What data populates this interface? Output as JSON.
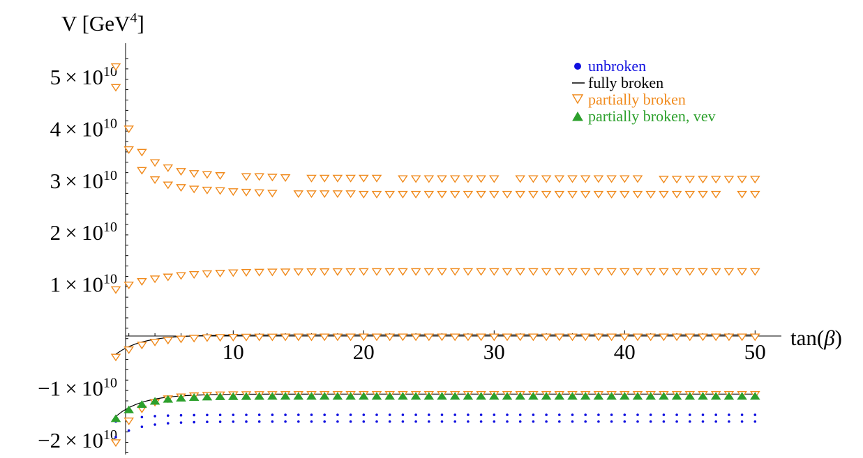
{
  "chart_data": {
    "type": "scatter",
    "title": "",
    "xlabel": "tan(β)",
    "ylabel": "V [GeV⁴]",
    "ylabel_parts": {
      "base": "V [GeV",
      "sup": "4",
      "close": "]"
    },
    "xlim": [
      0.5,
      51
    ],
    "ylim": [
      -22500000000.0,
      55000000000.0
    ],
    "x_ticks": [
      {
        "value": 10,
        "label": "10"
      },
      {
        "value": 20,
        "label": "20"
      },
      {
        "value": 30,
        "label": "30"
      },
      {
        "value": 40,
        "label": "40"
      },
      {
        "value": 50,
        "label": "50"
      }
    ],
    "y_ticks": [
      {
        "value": 50000000000.0,
        "coef": "5",
        "base": "10",
        "exp": "10"
      },
      {
        "value": 40000000000.0,
        "coef": "4",
        "base": "10",
        "exp": "10"
      },
      {
        "value": 30000000000.0,
        "coef": "3",
        "base": "10",
        "exp": "10"
      },
      {
        "value": 20000000000.0,
        "coef": "2",
        "base": "10",
        "exp": "10"
      },
      {
        "value": 10000000000.0,
        "coef": "1",
        "base": "10",
        "exp": "10"
      },
      {
        "value": -10000000000.0,
        "coef": "−1",
        "base": "10",
        "exp": "10"
      },
      {
        "value": -20000000000.0,
        "coef": "−2",
        "base": "10",
        "exp": "10"
      }
    ],
    "y_unit_in_tick_labels": "1e10",
    "y_minor_step": 2000000000.0,
    "grid": false,
    "legend_position": "top-right",
    "legend": [
      {
        "label": "unbroken",
        "marker": "filled-circle",
        "color": "#1010e0"
      },
      {
        "label": "fully broken",
        "marker": "line",
        "color": "#000000"
      },
      {
        "label": "partially broken",
        "marker": "open-triangle-down",
        "color": "#f08a1c"
      },
      {
        "label": "partially broken, vev",
        "marker": "filled-triangle-up",
        "color": "#2ca02c"
      }
    ],
    "series": [
      {
        "name": "unbroken",
        "marker": "filled-circle",
        "color": "#1010e0",
        "x_start": 1,
        "x_step": 1,
        "x_end": 50,
        "levels": [
          {
            "x_from": 1,
            "y_start": -16500000000.0,
            "y_end": -15200000000.0,
            "decay": 0.55
          },
          {
            "x_from": 1,
            "y_start": -19500000000.0,
            "y_end": -16500000000.0,
            "decay": 0.55
          },
          {
            "x_from": 1,
            "y_start": -15600000000.0,
            "y_end": -11600000000.0,
            "decay": 0.45
          }
        ]
      },
      {
        "name": "fully broken",
        "marker": "line",
        "color": "#000000",
        "levels": [
          {
            "x_from": 1,
            "y_start": -3500000000.0,
            "y_end": 200000000.0,
            "decay": 0.5
          },
          {
            "x_from": 1,
            "y_start": -15500000000.0,
            "y_end": -11200000000.0,
            "decay": 0.5
          }
        ]
      },
      {
        "name": "partially broken",
        "marker": "open-triangle-down",
        "color": "#f08a1c",
        "levels": [
          {
            "x_from": 1,
            "y_start": 9000000000.0,
            "y_end": 12500000000.0,
            "decay": 0.3
          },
          {
            "x_from": 1,
            "y_start": -4000000000.0,
            "y_end": -100000000.0,
            "decay": 0.45
          },
          {
            "x_from": 1,
            "y_start": -20500000000.0,
            "y_end": -11200000000.0,
            "decay": 0.6
          }
        ],
        "upper_points": [
          [
            1,
            52000000000.0
          ],
          [
            1,
            48000000000.0
          ],
          [
            2,
            40000000000.0
          ],
          [
            2,
            36000000000.0
          ],
          [
            3,
            35500000000.0
          ],
          [
            3,
            32000000000.0
          ],
          [
            4,
            33500000000.0
          ],
          [
            4,
            30200000000.0
          ],
          [
            5,
            32500000000.0
          ],
          [
            5,
            29200000000.0
          ],
          [
            6,
            31800000000.0
          ],
          [
            6,
            28700000000.0
          ],
          [
            7,
            31400000000.0
          ],
          [
            7,
            28400000000.0
          ],
          [
            8,
            31200000000.0
          ],
          [
            8,
            28200000000.0
          ],
          [
            9,
            31000000000.0
          ],
          [
            9,
            28100000000.0
          ],
          [
            10,
            27900000000.0
          ],
          [
            11,
            30800000000.0
          ],
          [
            11,
            27800000000.0
          ],
          [
            12,
            30800000000.0
          ],
          [
            12,
            27700000000.0
          ],
          [
            13,
            30700000000.0
          ],
          [
            13,
            27600000000.0
          ],
          [
            14,
            30600000000.0
          ],
          [
            15,
            27500000000.0
          ],
          [
            16,
            30500000000.0
          ],
          [
            16,
            27500000000.0
          ],
          [
            17,
            30500000000.0
          ],
          [
            17,
            27500000000.0
          ],
          [
            18,
            30500000000.0
          ],
          [
            18,
            27500000000.0
          ],
          [
            19,
            30500000000.0
          ],
          [
            19,
            27500000000.0
          ],
          [
            20,
            30500000000.0
          ],
          [
            20,
            27400000000.0
          ],
          [
            21,
            30500000000.0
          ],
          [
            21,
            27400000000.0
          ],
          [
            22,
            27400000000.0
          ],
          [
            23,
            30400000000.0
          ],
          [
            23,
            27400000000.0
          ],
          [
            24,
            30400000000.0
          ],
          [
            24,
            27400000000.0
          ],
          [
            25,
            30400000000.0
          ],
          [
            25,
            27400000000.0
          ],
          [
            26,
            30400000000.0
          ],
          [
            26,
            27400000000.0
          ],
          [
            27,
            30400000000.0
          ],
          [
            27,
            27400000000.0
          ],
          [
            28,
            30400000000.0
          ],
          [
            28,
            27400000000.0
          ],
          [
            29,
            30400000000.0
          ],
          [
            29,
            27400000000.0
          ],
          [
            30,
            30400000000.0
          ],
          [
            30,
            27400000000.0
          ],
          [
            31,
            27400000000.0
          ],
          [
            32,
            30400000000.0
          ],
          [
            32,
            27400000000.0
          ],
          [
            33,
            30400000000.0
          ],
          [
            33,
            27400000000.0
          ],
          [
            34,
            30400000000.0
          ],
          [
            34,
            27400000000.0
          ],
          [
            35,
            30400000000.0
          ],
          [
            35,
            27400000000.0
          ],
          [
            36,
            30400000000.0
          ],
          [
            36,
            27400000000.0
          ],
          [
            37,
            30400000000.0
          ],
          [
            37,
            27400000000.0
          ],
          [
            38,
            30400000000.0
          ],
          [
            38,
            27400000000.0
          ],
          [
            39,
            30400000000.0
          ],
          [
            39,
            27400000000.0
          ],
          [
            40,
            30400000000.0
          ],
          [
            40,
            27400000000.0
          ],
          [
            41,
            30400000000.0
          ],
          [
            41,
            27400000000.0
          ],
          [
            42,
            27400000000.0
          ],
          [
            43,
            30300000000.0
          ],
          [
            43,
            27400000000.0
          ],
          [
            44,
            30300000000.0
          ],
          [
            44,
            27400000000.0
          ],
          [
            45,
            30300000000.0
          ],
          [
            45,
            27400000000.0
          ],
          [
            46,
            30300000000.0
          ],
          [
            46,
            27400000000.0
          ],
          [
            47,
            30300000000.0
          ],
          [
            47,
            27400000000.0
          ],
          [
            48,
            30300000000.0
          ],
          [
            49,
            30300000000.0
          ],
          [
            49,
            27400000000.0
          ],
          [
            50,
            30300000000.0
          ],
          [
            50,
            27400000000.0
          ]
        ]
      },
      {
        "name": "partially broken, vev",
        "marker": "filled-triangle-up",
        "color": "#2ca02c",
        "levels": [
          {
            "x_from": 1,
            "y_start": -16000000000.0,
            "y_end": -11700000000.0,
            "decay": 0.5
          }
        ]
      }
    ]
  }
}
